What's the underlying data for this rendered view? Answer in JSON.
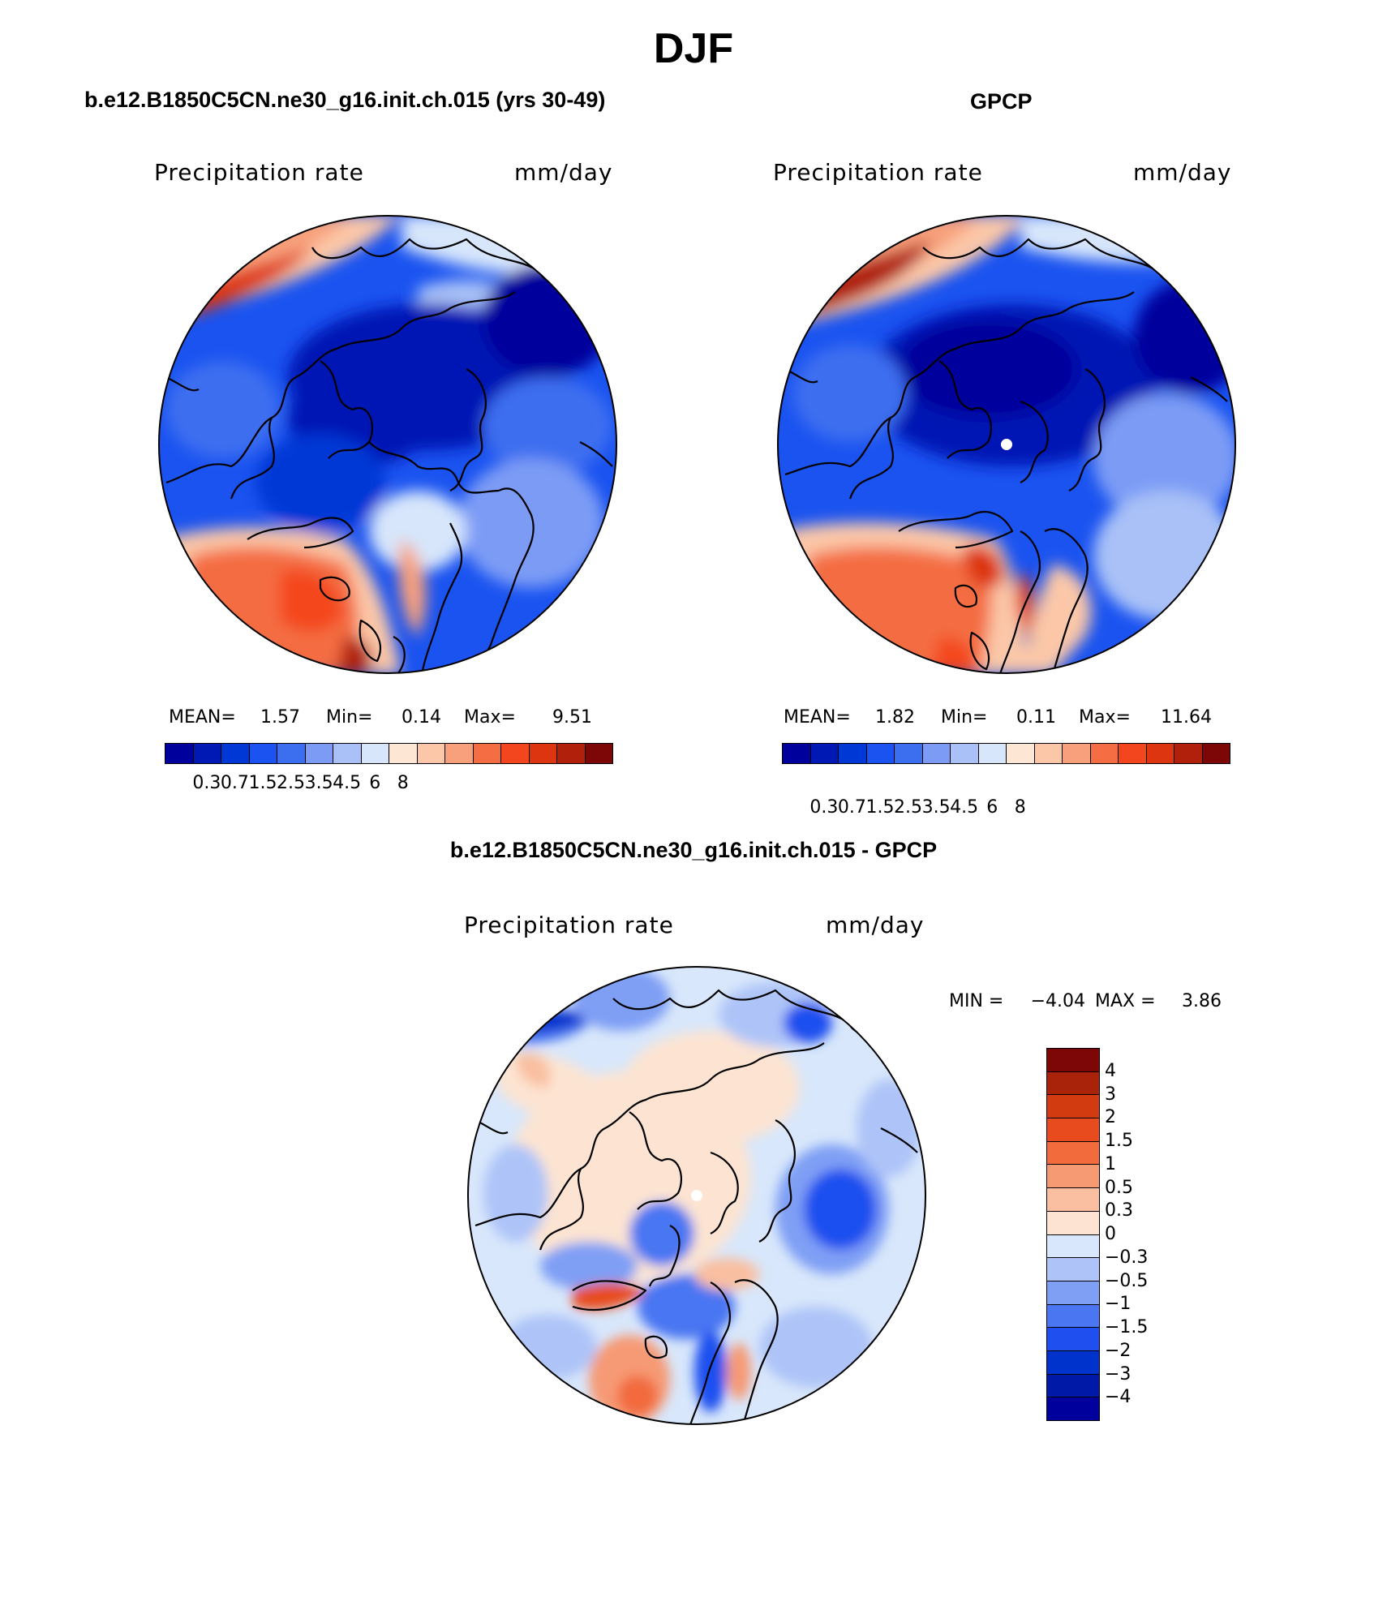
{
  "title": "DJF",
  "colors": {
    "abs_scale": [
      "#00009c",
      "#0019b4",
      "#0038d5",
      "#1a53f0",
      "#3c6ef0",
      "#7b9bf5",
      "#a9c1f7",
      "#d7e6fb",
      "#fde6d4",
      "#fbc7a8",
      "#f8a07c",
      "#f46d43",
      "#f4461e",
      "#dd3510",
      "#b0200a",
      "#7d0707"
    ],
    "diff_scale": [
      "#00009c",
      "#001aa8",
      "#0033cc",
      "#1f50ef",
      "#4a76f2",
      "#7f9ff5",
      "#aec4f8",
      "#d8e7fb",
      "#fde4d2",
      "#f9bfa0",
      "#f69a74",
      "#f26b3c",
      "#e84c1e",
      "#d23a10",
      "#a8230a",
      "#7d0707"
    ],
    "land_outline": "#000000"
  },
  "panels": [
    {
      "id": "model",
      "title": "b.e12.B1850C5CN.ne30_g16.init.ch.015 (yrs 30-49)",
      "variable": "Precipitation rate",
      "units": "mm/day",
      "stats": {
        "mean_label": "MEAN=",
        "mean": "1.57",
        "min_label": "Min=",
        "min": "0.14",
        "max_label": "Max=",
        "max": "9.51"
      },
      "colorbar_labels": [
        "0.3",
        "0.7",
        "1.5",
        "2.5",
        "3.5",
        "4.5",
        "6",
        "8"
      ]
    },
    {
      "id": "obs",
      "title": "GPCP",
      "variable": "Precipitation rate",
      "units": "mm/day",
      "stats": {
        "mean_label": "MEAN=",
        "mean": "1.82",
        "min_label": "Min=",
        "min": "0.11",
        "max_label": "Max=",
        "max": "11.64"
      },
      "colorbar_labels": [
        "0.3",
        "0.7",
        "1.5",
        "2.5",
        "3.5",
        "4.5",
        "6",
        "8"
      ]
    },
    {
      "id": "diff",
      "title": "b.e12.B1850C5CN.ne30_g16.init.ch.015 - GPCP",
      "variable": "Precipitation rate",
      "units": "mm/day",
      "stats": {
        "min_label": "MIN =",
        "min": "−4.04",
        "max_label": "MAX =",
        "max": "3.86"
      },
      "colorbar_labels": [
        "4",
        "3",
        "2",
        "1.5",
        "1",
        "0.5",
        "0.3",
        "0",
        "−0.3",
        "−0.5",
        "−1",
        "−1.5",
        "−2",
        "−3",
        "−4"
      ]
    }
  ]
}
